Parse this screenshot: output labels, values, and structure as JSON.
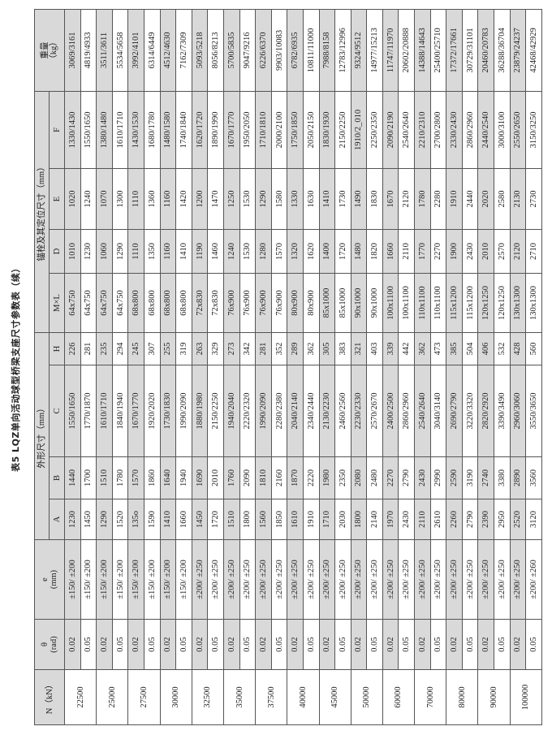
{
  "title": "表5  LQZ单向活动球型桥梁支座尺寸参数表（续）",
  "headers": {
    "n": "N（kN）",
    "theta": "θ",
    "theta_unit": "(rad)",
    "e": "e",
    "e_unit": "(mm)",
    "outline_group": "外形尺寸（mm）",
    "anchor_group": "锚栓及其定位尺寸（mm）",
    "a": "A",
    "b": "B",
    "c": "C",
    "h": "H",
    "ml": "M×L",
    "d": "D",
    "e2": "E",
    "f": "F",
    "weight": "重量",
    "weight_unit": "（kg）"
  },
  "groups": [
    {
      "n": "22500",
      "rows": [
        [
          "0.02",
          "±150/ ±200",
          "1230",
          "1440",
          "1550/1650",
          "226",
          "64x750",
          "1010",
          "1020",
          "1330/1430",
          "3069/3161"
        ],
        [
          "0.05",
          "±150/ ±200",
          "1450",
          "1700",
          "1770/1870",
          "281",
          "64x750",
          "1230",
          "1240",
          "1550/1650",
          "4819/4933"
        ]
      ]
    },
    {
      "n": "25000",
      "rows": [
        [
          "0.02",
          "±150/ ±200",
          "1290",
          "1510",
          "1610/1710",
          "235",
          "64x750",
          "1060",
          "1070",
          "1380/1480",
          "3511/3611"
        ],
        [
          "0.05",
          "±150/ ±200",
          "1520",
          "1780",
          "1840/1940",
          "294",
          "64x750",
          "1290",
          "1300",
          "1610/1710",
          "5534/5658"
        ]
      ]
    },
    {
      "n": "27500",
      "rows": [
        [
          "0.02",
          "±150/ ±200",
          "135o",
          "1570",
          "1670/1770",
          "245",
          "68x800",
          "1110",
          "1110",
          "1430/1530",
          "3992/4101"
        ],
        [
          "0.05",
          "±150/ ±200",
          "1590",
          "1860",
          "1920/2020",
          "307",
          "68x800",
          "1350",
          "1360",
          "1680/1780",
          "6314/6449"
        ]
      ]
    },
    {
      "n": "30000",
      "rows": [
        [
          "0.02",
          "±150/ ±200",
          "1410",
          "1640",
          "1730/1830",
          "255",
          "68x800",
          "1160",
          "1160",
          "1480/1580",
          "4512/4630"
        ],
        [
          "0.05",
          "±150/ ±200",
          "1660",
          "1940",
          "1990/2090",
          "319",
          "68x800",
          "1410",
          "1420",
          "1740/1840",
          "7162/7309"
        ]
      ]
    },
    {
      "n": "32500",
      "rows": [
        [
          "0.02",
          "±200/ ±250",
          "1450",
          "1690",
          "1880/1980",
          "263",
          "72x830",
          "1190",
          "1200",
          "1620/1720",
          "5093/5218"
        ],
        [
          "0.05",
          "±200/ ±250",
          "1720",
          "2010",
          "2150/2250",
          "329",
          "72x830",
          "1460",
          "1470",
          "1890/1990",
          "8056/8213"
        ]
      ]
    },
    {
      "n": "35000",
      "rows": [
        [
          "0.02",
          "±200/ ±250",
          "1510",
          "1760",
          "1940/2040",
          "273",
          "76x900",
          "1240",
          "1250",
          "1670/1770",
          "5700/5835"
        ],
        [
          "0.05",
          "±200/ ±250",
          "1800",
          "2090",
          "2220/2320",
          "342",
          "76x900",
          "1530",
          "1530",
          "1950/2050",
          "9047/9216"
        ]
      ]
    },
    {
      "n": "37500",
      "rows": [
        [
          "0.02",
          "±200/ ±250",
          "1560",
          "1810",
          "1990/2090",
          "281",
          "76x900",
          "1280",
          "1290",
          "1710/1810",
          "6226/6370"
        ],
        [
          "0.05",
          "±200/ ±250",
          "1850",
          "2160",
          "2280/2380",
          "352",
          "76x900",
          "1570",
          "1580",
          "2000/2100",
          "9903/10083"
        ]
      ]
    },
    {
      "n": "40000",
      "rows": [
        [
          "0.02",
          "±200/ ±250",
          "1610",
          "1870",
          "2040/2140",
          "289",
          "80x900",
          "1320",
          "1330",
          "1750/1850",
          "6782/6935"
        ],
        [
          "0.05",
          "±200/ ±250",
          "1910",
          "2220",
          "2340/2440",
          "362",
          "80x900",
          "1620",
          "1630",
          "2050/2150",
          "10811/11000"
        ]
      ]
    },
    {
      "n": "45000",
      "rows": [
        [
          "0.02",
          "±200/ ±250",
          "1710",
          "1980",
          "2130/2230",
          "305",
          "85x1000",
          "1400",
          "1410",
          "1830/1930",
          "7988/8158"
        ],
        [
          "0.05",
          "±200/ ±250",
          "2030",
          "2350",
          "2460/2560",
          "383",
          "85x1000",
          "1720",
          "1730",
          "2150/2250",
          "12783/12996"
        ]
      ]
    },
    {
      "n": "50000",
      "rows": [
        [
          "0.02",
          "±200/ ±250",
          "1800",
          "2080",
          "2230/2330",
          "321",
          "90x1000",
          "1480",
          "1490",
          "1910/2_010",
          "9324/9512"
        ],
        [
          "0.05",
          "±200/ ±250",
          "2140",
          "2480",
          "2570/2670",
          "403",
          "90x1000",
          "1820",
          "1830",
          "2250/2350",
          "14977/15213"
        ]
      ]
    },
    {
      "n": "60000",
      "rows": [
        [
          "0.02",
          "±200/ ±250",
          "1970",
          "2270",
          "2400/2500",
          "339",
          "100x1100",
          "1660",
          "1670",
          "2090/2190",
          "11747/11970"
        ],
        [
          "0.05",
          "±200/ ±250",
          "2430",
          "2790",
          "2860/2960",
          "442",
          "100x1100",
          "2110",
          "2120",
          "2540/2640",
          "20602/20888"
        ]
      ]
    },
    {
      "n": "70000",
      "rows": [
        [
          "0.02",
          "±200/ ±250",
          "2110",
          "2430",
          "2540/2640",
          "362",
          "110x1100",
          "1770",
          "1780",
          "2210/2310",
          "14388/14643"
        ],
        [
          "0.05",
          "±200/ ±250",
          "2610",
          "2990",
          "3040/3140",
          "473",
          "110x1100",
          "2270",
          "2280",
          "2700/2800",
          "25400/25710"
        ]
      ]
    },
    {
      "n": "80000",
      "rows": [
        [
          "0.02",
          "±200/ ±250",
          "2260",
          "2590",
          "2690/2790",
          "385",
          "115x1200",
          "1900",
          "1910",
          "2330/2430",
          "17372/17661"
        ],
        [
          "0.05",
          "±200/ ±250",
          "2790",
          "3190",
          "3220/3320",
          "504",
          "115x1200",
          "2430",
          "2440",
          "2860/2960",
          "30729/31101"
        ]
      ]
    },
    {
      "n": "90000",
      "rows": [
        [
          "0.02",
          "±200/ ±250",
          "2390",
          "2740",
          "2820/2920",
          "406",
          "120x1250",
          "2010",
          "2020",
          "2440/2540",
          "20460/20783"
        ],
        [
          "0.05",
          "±200/ ±250",
          "2950",
          "3380",
          "3390/3490",
          "532",
          "120x1250",
          "2570",
          "2580",
          "3000/3100",
          "36288/36704"
        ]
      ]
    },
    {
      "n": "100000",
      "rows": [
        [
          "0.02",
          "±200/ ±250",
          "2520",
          "2890",
          "2960/3060",
          "428",
          "130x1300",
          "2120",
          "2130",
          "2550/2650",
          "23879/24237"
        ],
        [
          "0.05",
          "±200/ ±260",
          "3120",
          "3560",
          "3550/3650",
          "560",
          "130x1300",
          "2710",
          "2730",
          "3150/3250",
          "42468/42929"
        ]
      ]
    }
  ]
}
